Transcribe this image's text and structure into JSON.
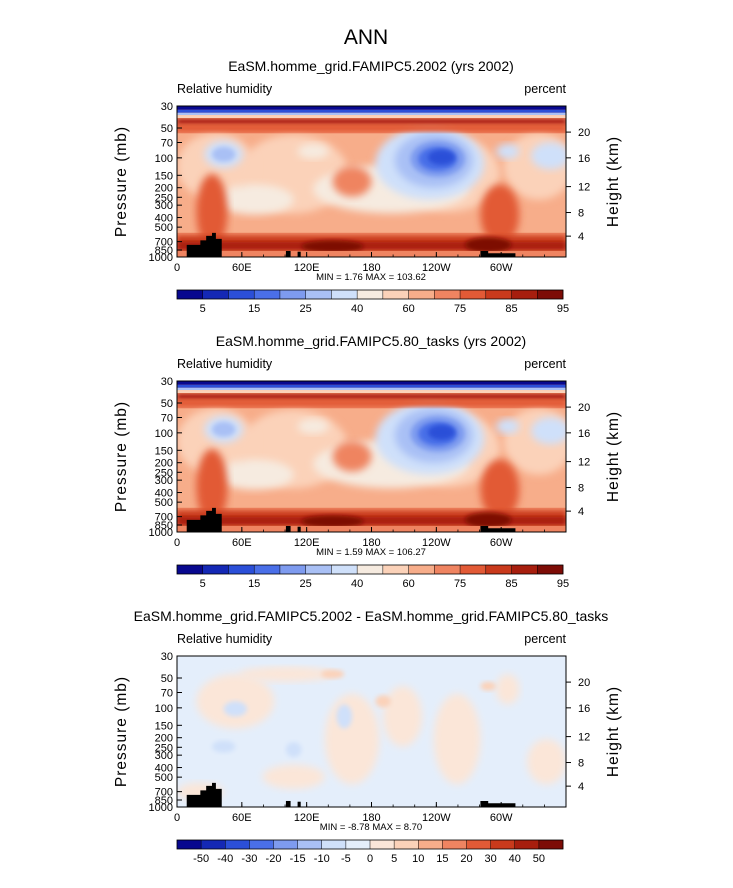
{
  "figure": {
    "suptitle": "ANN"
  },
  "chart_data": [
    {
      "type": "heatmap",
      "title": "EaSM.homme_grid.FAMIPC5.2002 (yrs 2002)",
      "variable_label": "Relative humidity",
      "units_label": "percent",
      "ylabel": "Pressure (mb)",
      "ylabel_right": "Height (km)",
      "x_ticks": [
        "0",
        "60E",
        "120E",
        "180",
        "120W",
        "60W"
      ],
      "y_ticks": [
        "30",
        "50",
        "70",
        "100",
        "150",
        "200",
        "250",
        "300",
        "400",
        "500",
        "700",
        "850",
        "1000"
      ],
      "y_right_ticks": [
        "20",
        "16",
        "12",
        "8",
        "4"
      ],
      "stats_text": "MIN =    1.76  MAX = 103.62",
      "min": 1.76,
      "max": 103.62,
      "colorbar_labels": [
        "5",
        "15",
        "25",
        "40",
        "60",
        "75",
        "85",
        "95"
      ],
      "colors": [
        "#08088f",
        "#1428b5",
        "#2b4fd8",
        "#4a6fe8",
        "#7e9bef",
        "#a9c0f5",
        "#cfe0fa",
        "#f6ebe0",
        "#fbd2b9",
        "#f7ad8a",
        "#ef8461",
        "#e25a36",
        "#c93a1c",
        "#a71e0e",
        "#7d0c06"
      ]
    },
    {
      "type": "heatmap",
      "title": "EaSM.homme_grid.FAMIPC5.80_tasks (yrs 2002)",
      "variable_label": "Relative humidity",
      "units_label": "percent",
      "ylabel": "Pressure (mb)",
      "ylabel_right": "Height (km)",
      "x_ticks": [
        "0",
        "60E",
        "120E",
        "180",
        "120W",
        "60W"
      ],
      "y_ticks": [
        "30",
        "50",
        "70",
        "100",
        "150",
        "200",
        "250",
        "300",
        "400",
        "500",
        "700",
        "850",
        "1000"
      ],
      "y_right_ticks": [
        "20",
        "16",
        "12",
        "8",
        "4"
      ],
      "stats_text": "MIN =    1.59  MAX = 106.27",
      "min": 1.59,
      "max": 106.27,
      "colorbar_labels": [
        "5",
        "15",
        "25",
        "40",
        "60",
        "75",
        "85",
        "95"
      ],
      "colors": [
        "#08088f",
        "#1428b5",
        "#2b4fd8",
        "#4a6fe8",
        "#7e9bef",
        "#a9c0f5",
        "#cfe0fa",
        "#f6ebe0",
        "#fbd2b9",
        "#f7ad8a",
        "#ef8461",
        "#e25a36",
        "#c93a1c",
        "#a71e0e",
        "#7d0c06"
      ]
    },
    {
      "type": "heatmap",
      "title": "EaSM.homme_grid.FAMIPC5.2002 - EaSM.homme_grid.FAMIPC5.80_tasks",
      "variable_label": "Relative humidity",
      "units_label": "percent",
      "ylabel": "Pressure (mb)",
      "ylabel_right": "Height (km)",
      "x_ticks": [
        "0",
        "60E",
        "120E",
        "180",
        "120W",
        "60W"
      ],
      "y_ticks": [
        "30",
        "50",
        "70",
        "100",
        "150",
        "200",
        "250",
        "300",
        "400",
        "500",
        "700",
        "850",
        "1000"
      ],
      "y_right_ticks": [
        "20",
        "16",
        "12",
        "8",
        "4"
      ],
      "stats_text": "MIN =   -8.78  MAX =    8.70",
      "min": -8.78,
      "max": 8.7,
      "colorbar_labels": [
        "-50",
        "-40",
        "-30",
        "-20",
        "-15",
        "-10",
        "-5",
        "0",
        "5",
        "10",
        "15",
        "20",
        "30",
        "40",
        "50"
      ],
      "colors": [
        "#08088f",
        "#1428b5",
        "#2b4fd8",
        "#4a6fe8",
        "#7e9bef",
        "#a9c0f5",
        "#cfe0fa",
        "#e4eefb",
        "#fbe6d8",
        "#fbd2b9",
        "#f7ad8a",
        "#ef8461",
        "#e25a36",
        "#c93a1c",
        "#a71e0e",
        "#7d0c06"
      ]
    }
  ]
}
